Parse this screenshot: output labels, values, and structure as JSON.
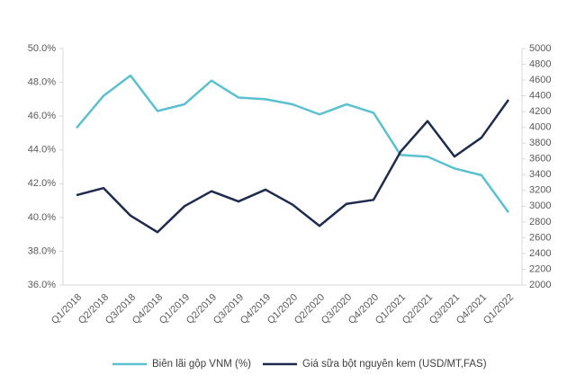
{
  "chart_data": {
    "type": "line",
    "categories": [
      "Q1/2018",
      "Q2/2018",
      "Q3/2018",
      "Q4/2018",
      "Q1/2019",
      "Q2/2019",
      "Q3/2019",
      "Q4/2019",
      "Q1/2020",
      "Q2/2020",
      "Q3/2020",
      "Q4/2020",
      "Q1/2021",
      "Q2/2021",
      "Q3/2021",
      "Q4/2021",
      "Q1/2022"
    ],
    "series": [
      {
        "name": "Biên lãi gộp VNM (%)",
        "color": "#5bc0cf",
        "values": [
          45.3,
          47.2,
          48.4,
          46.3,
          46.7,
          48.1,
          47.1,
          47.0,
          46.7,
          46.1,
          46.7,
          46.2,
          43.7,
          43.6,
          42.9,
          42.5,
          40.3
        ]
      },
      {
        "name": "Giá sữa bột nguyên kem (USD/MT,FAS)",
        "color": "#1f2a4f",
        "axis": "y2",
        "values": [
          3140,
          3230,
          2880,
          2670,
          3000,
          3190,
          3060,
          3210,
          3020,
          2750,
          3030,
          3080,
          3690,
          4080,
          3630,
          3870,
          4350
        ]
      }
    ],
    "ylim": [
      36,
      50
    ],
    "yticks": [
      {
        "value": 36,
        "label": "36.0%"
      },
      {
        "value": 38,
        "label": "38.0%"
      },
      {
        "value": 40,
        "label": "40.0%"
      },
      {
        "value": 42,
        "label": "42.0%"
      },
      {
        "value": 44,
        "label": "44.0%"
      },
      {
        "value": 46,
        "label": "46.0%"
      },
      {
        "value": 48,
        "label": "48.0%"
      },
      {
        "value": 50,
        "label": "50.0%"
      }
    ],
    "y2lim": [
      2000,
      5000
    ],
    "y2ticks": [
      2000,
      2200,
      2400,
      2600,
      2800,
      3000,
      3200,
      3400,
      3600,
      3800,
      4000,
      4200,
      4400,
      4600,
      4800,
      5000
    ],
    "grid": false
  }
}
